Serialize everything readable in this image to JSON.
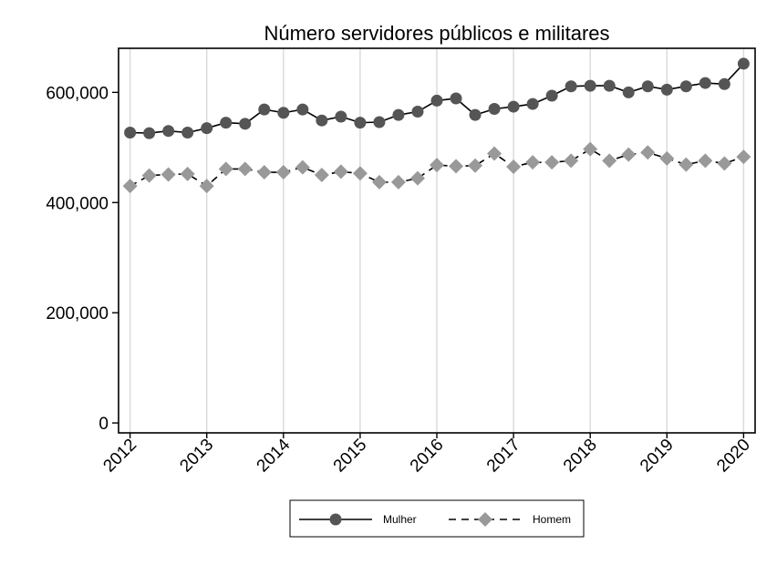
{
  "chart_data": {
    "type": "line",
    "title": "Número servidores públicos e militares",
    "xlabel": "",
    "ylabel": "",
    "x_tick_labels": [
      "2012",
      "2013",
      "2014",
      "2015",
      "2016",
      "2017",
      "2018",
      "2019",
      "2020"
    ],
    "y_tick_labels": [
      "0",
      "200,000",
      "400,000",
      "600,000"
    ],
    "y_ticks": [
      0,
      200000,
      400000,
      600000
    ],
    "ylim": [
      -18000,
      680000
    ],
    "xlim": [
      2011.85,
      2020.15
    ],
    "grid": "vertical",
    "legend_position": "bottom",
    "x": [
      2012.0,
      2012.25,
      2012.5,
      2012.75,
      2013.0,
      2013.25,
      2013.5,
      2013.75,
      2014.0,
      2014.25,
      2014.5,
      2014.75,
      2015.0,
      2015.25,
      2015.5,
      2015.75,
      2016.0,
      2016.25,
      2016.5,
      2016.75,
      2017.0,
      2017.25,
      2017.5,
      2017.75,
      2018.0,
      2018.25,
      2018.5,
      2018.75,
      2019.0,
      2019.25,
      2019.5,
      2019.75,
      2020.0
    ],
    "series": [
      {
        "name": "Mulher",
        "color": "#555555",
        "marker": "circle",
        "line": "solid",
        "values": [
          527000,
          526000,
          530000,
          527000,
          535000,
          545000,
          543000,
          569000,
          563000,
          569000,
          549000,
          556000,
          545000,
          546000,
          559000,
          565000,
          585000,
          589000,
          559000,
          570000,
          574000,
          579000,
          594000,
          611000,
          612000,
          612000,
          600000,
          611000,
          605000,
          611000,
          617000,
          615000,
          652000
        ]
      },
      {
        "name": "Homem",
        "color": "#999999",
        "marker": "diamond",
        "line": "dashed",
        "values": [
          430000,
          449000,
          451000,
          452000,
          430000,
          461000,
          461000,
          455000,
          455000,
          464000,
          450000,
          456000,
          453000,
          437000,
          437000,
          444000,
          468000,
          466000,
          467000,
          489000,
          465000,
          473000,
          473000,
          476000,
          497000,
          476000,
          487000,
          491000,
          480000,
          469000,
          476000,
          471000,
          483000
        ]
      }
    ]
  }
}
